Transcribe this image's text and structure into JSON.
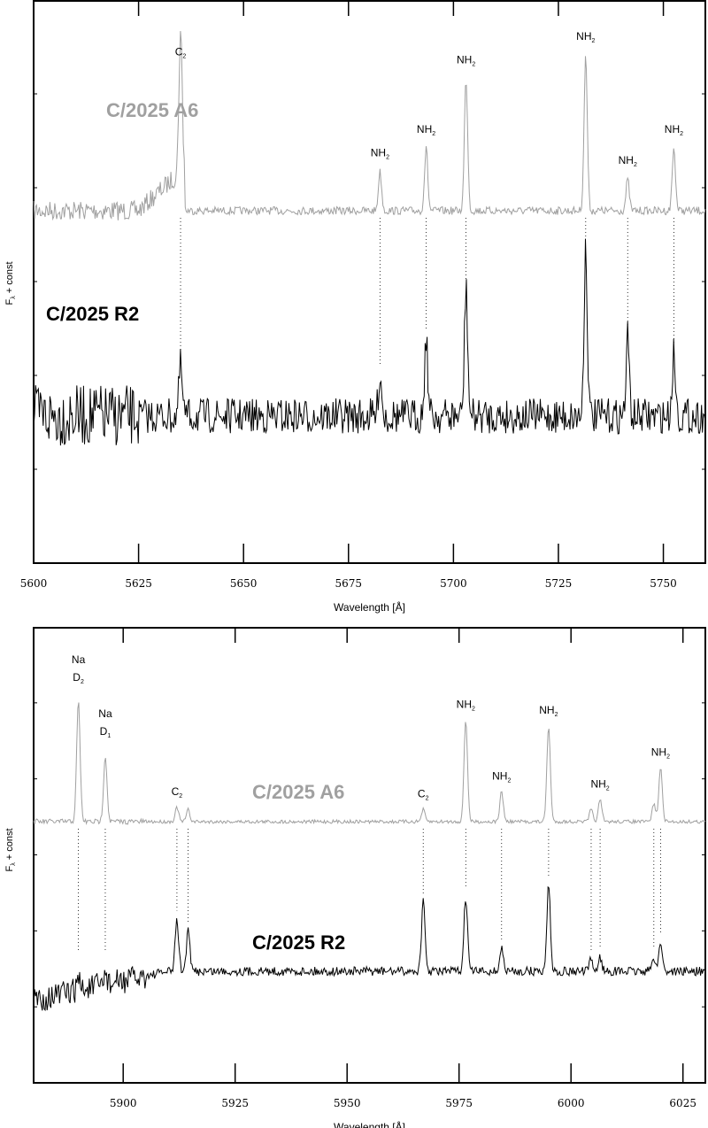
{
  "chart_data": [
    {
      "type": "line",
      "title": "",
      "xlabel": "Wavelength [Å]",
      "ylabel": "F_λ + const",
      "ylabel_main": "F",
      "ylabel_sub": "λ",
      "ylabel_rest": " + const",
      "xlim": [
        5600,
        5760
      ],
      "xticks": [
        5600,
        5625,
        5650,
        5675,
        5700,
        5725,
        5750
      ],
      "grid": false,
      "series": [
        {
          "name": "C/2025 A6",
          "color": "#a0a0a0"
        },
        {
          "name": "C/2025 R2",
          "color": "#000000"
        }
      ],
      "lines": [
        {
          "x": 5635,
          "label": "C",
          "sub": "2",
          "a6": 0.9,
          "r2": 0.35
        },
        {
          "x": 5682.5,
          "label": "NH",
          "sub": "2",
          "a6": 0.25,
          "r2": 0.3
        },
        {
          "x": 5693.5,
          "label": "NH",
          "sub": "2",
          "a6": 0.4,
          "r2": 0.55
        },
        {
          "x": 5703,
          "label": "NH",
          "sub": "2",
          "a6": 0.85,
          "r2": 0.9
        },
        {
          "x": 5731.5,
          "label": "NH",
          "sub": "2",
          "a6": 1.0,
          "r2": 1.2
        },
        {
          "x": 5741.5,
          "label": "NH",
          "sub": "2",
          "a6": 0.2,
          "r2": 0.55
        },
        {
          "x": 5752.5,
          "label": "NH",
          "sub": "2",
          "a6": 0.4,
          "r2": 0.45
        }
      ]
    },
    {
      "type": "line",
      "title": "",
      "xlabel": "Wavelength [Å]",
      "ylabel": "F_λ + const",
      "ylabel_main": "F",
      "ylabel_sub": "λ",
      "ylabel_rest": " + const",
      "xlim": [
        5880,
        6030
      ],
      "xticks": [
        5900,
        5925,
        5950,
        5975,
        6000,
        6025
      ],
      "grid": false,
      "series": [
        {
          "name": "C/2025 A6",
          "color": "#a0a0a0"
        },
        {
          "name": "C/2025 R2",
          "color": "#000000"
        }
      ],
      "lines": [
        {
          "x": 5890,
          "label": "Na",
          "sub": "2",
          "pre": "D",
          "a6": 1.0,
          "r2": 0.1
        },
        {
          "x": 5896,
          "label": "Na",
          "sub": "1",
          "pre": "D",
          "a6": 0.55,
          "r2": 0.1
        },
        {
          "x": 5912,
          "label": "C",
          "sub": "2",
          "a6": 0.12,
          "r2": 0.45
        },
        {
          "x": 5914.5,
          "label": "",
          "sub": "",
          "a6": 0.1,
          "r2": 0.35
        },
        {
          "x": 5967,
          "label": "C",
          "sub": "2",
          "a6": 0.1,
          "r2": 0.6
        },
        {
          "x": 5976.5,
          "label": "NH",
          "sub": "2",
          "a6": 0.85,
          "r2": 0.65
        },
        {
          "x": 5984.5,
          "label": "NH",
          "sub": "2",
          "a6": 0.25,
          "r2": 0.2
        },
        {
          "x": 5995,
          "label": "NH",
          "sub": "2",
          "a6": 0.8,
          "r2": 0.75
        },
        {
          "x": 6004.5,
          "label": "",
          "sub": "",
          "a6": 0.1,
          "r2": 0.1
        },
        {
          "x": 6006.5,
          "label": "NH",
          "sub": "2",
          "a6": 0.18,
          "r2": 0.12
        },
        {
          "x": 6018.5,
          "label": "",
          "sub": "",
          "a6": 0.15,
          "r2": 0.12
        },
        {
          "x": 6020,
          "label": "NH",
          "sub": "2",
          "a6": 0.45,
          "r2": 0.25
        }
      ]
    }
  ]
}
